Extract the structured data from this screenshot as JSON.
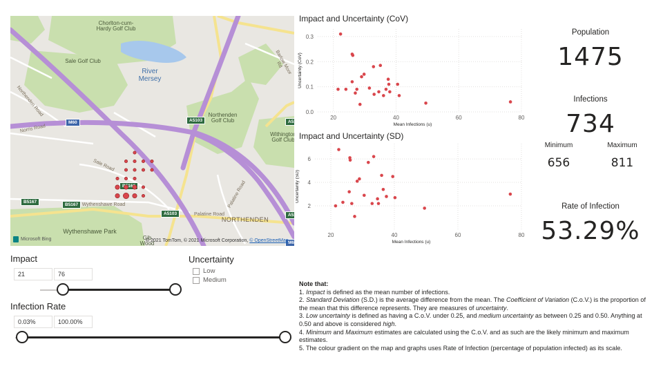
{
  "map": {
    "labels": {
      "chorlton": "Chorlton-cum-Hardy Golf Club",
      "sale_golf": "Sale Golf Club",
      "river": "River Mersey",
      "northenden_golf": "Northenden Golf Club",
      "withington": "Withington Golf Club",
      "wythenshawe": "Wythenshawe Park",
      "gib_wood": "Gib Wood",
      "northenden": "NORTHENDEN",
      "barlow": "Barlow Moor Rd",
      "northen_road": "Northenden Road",
      "norris_road": "Norris Road",
      "sale_road": "Sale Road",
      "wythenshawe_road": "Wythenshawe Road",
      "palatine_road": "Palatine Road",
      "palatine_road_2": "Palatine Road"
    },
    "shields": {
      "m60": "M60",
      "a5103a": "A5103",
      "a5103b": "A5103",
      "a5103c": "A5103",
      "b5166": "B5166",
      "b5167a": "B5167",
      "b5167b": "B5167",
      "m6": "M6",
      "a51": "A51"
    },
    "bing": "Microsoft Bing",
    "copyright_prefix": "© 2021 TomTom, © 2021 Microsoft Corporation, ",
    "copyright_link": "© OpenStreetMap",
    "dots": [
      {
        "col": 0,
        "row": 0,
        "size": "small"
      },
      {
        "col": -1,
        "row": 1,
        "size": "small"
      },
      {
        "col": 0,
        "row": 1,
        "size": "small"
      },
      {
        "col": 1,
        "row": 1,
        "size": "small"
      },
      {
        "col": 2,
        "row": 1,
        "size": "small"
      },
      {
        "col": -1,
        "row": 2,
        "size": "small"
      },
      {
        "col": 0,
        "row": 2,
        "size": "small"
      },
      {
        "col": 1,
        "row": 2,
        "size": "small"
      },
      {
        "col": 2,
        "row": 2,
        "size": "small"
      },
      {
        "col": -2,
        "row": 3,
        "size": "small"
      },
      {
        "col": -1,
        "row": 3,
        "size": "small"
      },
      {
        "col": 0,
        "row": 3,
        "size": "small"
      },
      {
        "col": -2,
        "row": 4,
        "size": "medium"
      },
      {
        "col": -1,
        "row": 4,
        "size": "medium"
      },
      {
        "col": 0,
        "row": 4,
        "size": "medium"
      },
      {
        "col": 1,
        "row": 4,
        "size": "small"
      },
      {
        "col": -2,
        "row": 5,
        "size": "medium"
      },
      {
        "col": -1,
        "row": 5,
        "size": "large"
      },
      {
        "col": 0,
        "row": 5,
        "size": "medium"
      },
      {
        "col": 1,
        "row": 5,
        "size": "small"
      }
    ]
  },
  "impact": {
    "title": "Impact",
    "min_value": "21",
    "max_value": "76",
    "range_fraction": [
      0.0,
      1.0
    ]
  },
  "uncertainty": {
    "title": "Uncertainty",
    "options": [
      "Low",
      "Medium"
    ]
  },
  "infection_rate": {
    "title": "Infection Rate",
    "min_value": "0.03%",
    "max_value": "100.00%",
    "range_fraction": [
      0.0,
      1.0
    ]
  },
  "chart_data": [
    {
      "type": "scatter",
      "title": "Impact and Uncertainty (CoV)",
      "xlabel": "Mean Infections (u)",
      "ylabel": "Uncertainty (CoV)",
      "xlim": [
        15,
        80
      ],
      "ylim": [
        0,
        0.33
      ],
      "xticks": [
        20,
        40,
        60,
        80
      ],
      "yticks": [
        0.0,
        0.1,
        0.2,
        0.3
      ],
      "ytick_labels": [
        "0.0",
        "0.1",
        "0.2",
        "0.3"
      ],
      "points": [
        {
          "x": 22.3,
          "y": 0.31
        },
        {
          "x": 21.5,
          "y": 0.09
        },
        {
          "x": 24.0,
          "y": 0.09
        },
        {
          "x": 26.0,
          "y": 0.23
        },
        {
          "x": 26.2,
          "y": 0.225
        },
        {
          "x": 26.0,
          "y": 0.12
        },
        {
          "x": 27.5,
          "y": 0.09
        },
        {
          "x": 27.0,
          "y": 0.075
        },
        {
          "x": 28.5,
          "y": 0.03
        },
        {
          "x": 29.0,
          "y": 0.14
        },
        {
          "x": 29.8,
          "y": 0.15
        },
        {
          "x": 31.5,
          "y": 0.095
        },
        {
          "x": 32.8,
          "y": 0.18
        },
        {
          "x": 33.0,
          "y": 0.07
        },
        {
          "x": 35.0,
          "y": 0.185
        },
        {
          "x": 34.5,
          "y": 0.08
        },
        {
          "x": 36.0,
          "y": 0.065
        },
        {
          "x": 36.8,
          "y": 0.09
        },
        {
          "x": 37.5,
          "y": 0.13
        },
        {
          "x": 37.7,
          "y": 0.11
        },
        {
          "x": 40.5,
          "y": 0.11
        },
        {
          "x": 41.0,
          "y": 0.065
        },
        {
          "x": 38.0,
          "y": 0.08
        },
        {
          "x": 49.5,
          "y": 0.035
        },
        {
          "x": 76.5,
          "y": 0.04
        }
      ]
    },
    {
      "type": "scatter",
      "title": "Impact and Uncertainty (SD)",
      "xlabel": "Mean Infections (u)",
      "ylabel": "Uncertainty (SD)",
      "xlim": [
        15,
        80
      ],
      "ylim": [
        0,
        7.3
      ],
      "xticks": [
        20,
        40,
        60,
        80
      ],
      "yticks": [
        2,
        4,
        6
      ],
      "ytick_labels": [
        "2",
        "4",
        "6"
      ],
      "points": [
        {
          "x": 22.5,
          "y": 6.8
        },
        {
          "x": 21.5,
          "y": 2.0
        },
        {
          "x": 23.8,
          "y": 2.3
        },
        {
          "x": 26.0,
          "y": 6.1
        },
        {
          "x": 26.1,
          "y": 5.9
        },
        {
          "x": 25.8,
          "y": 3.2
        },
        {
          "x": 26.6,
          "y": 2.2
        },
        {
          "x": 27.5,
          "y": 1.1
        },
        {
          "x": 28.3,
          "y": 4.1
        },
        {
          "x": 29.0,
          "y": 4.3
        },
        {
          "x": 30.5,
          "y": 2.9
        },
        {
          "x": 31.8,
          "y": 5.7
        },
        {
          "x": 33.0,
          "y": 2.2
        },
        {
          "x": 33.5,
          "y": 6.2
        },
        {
          "x": 34.7,
          "y": 2.6
        },
        {
          "x": 35.0,
          "y": 2.2
        },
        {
          "x": 36.0,
          "y": 4.6
        },
        {
          "x": 36.5,
          "y": 3.4
        },
        {
          "x": 37.5,
          "y": 2.8
        },
        {
          "x": 39.5,
          "y": 4.5
        },
        {
          "x": 40.2,
          "y": 2.7
        },
        {
          "x": 49.5,
          "y": 1.8
        },
        {
          "x": 76.5,
          "y": 3.0
        }
      ]
    }
  ],
  "kpi": {
    "population_label": "Population",
    "population_value": "1475",
    "infections_label": "Infections",
    "infections_value": "734",
    "minimum_label": "Minimum",
    "minimum_value": "656",
    "maximum_label": "Maximum",
    "maximum_value": "811",
    "rate_label": "Rate of Infection",
    "rate_value": "53.29%"
  },
  "notes": {
    "heading": "Note that:",
    "n1_pre": "1. ",
    "n1_em": "Impact",
    "n1_post": " is defined as the mean number of infections.",
    "n2_pre": "2. ",
    "n2_em1": "Standard Deviation",
    "n2_mid1": " (S.D.) is the average difference from the mean. The ",
    "n2_em2": "Coefficient of Variation",
    "n2_mid2": " (C.o.V.) is the proportion of the mean that this difference represents. They are measures of ",
    "n2_em3": "uncertainty",
    "n2_end": ".",
    "n3_pre": "3. ",
    "n3_em1": "Low uncertainty",
    "n3_mid1": " is defined as having a C.o.V. under 0.25, and ",
    "n3_em2": "medium uncertainty",
    "n3_mid2": " as between 0.25 and 0.50. Anything at 0.50 and above is considered ",
    "n3_em3": "high",
    "n3_end": ".",
    "n4_pre": "4. ",
    "n4_em1": "Minimum",
    "n4_mid1": " and ",
    "n4_em2": "Maximum",
    "n4_mid2": " estimates are calculated using the C.o.V. and as such are the likely minimum and maximum estimates.",
    "n5": "5. The colour gradient on the map and graphs uses Rate of Infection (percentage of population infected) as its scale."
  },
  "colors": {
    "dot": "#d9464c",
    "dot_light": "#e9a6a9",
    "motorway": "#b68fd6",
    "primary_road": "#f5e38f",
    "park": "#c9dfae",
    "water": "#a7c8ec",
    "land": "#e9e7e2"
  }
}
